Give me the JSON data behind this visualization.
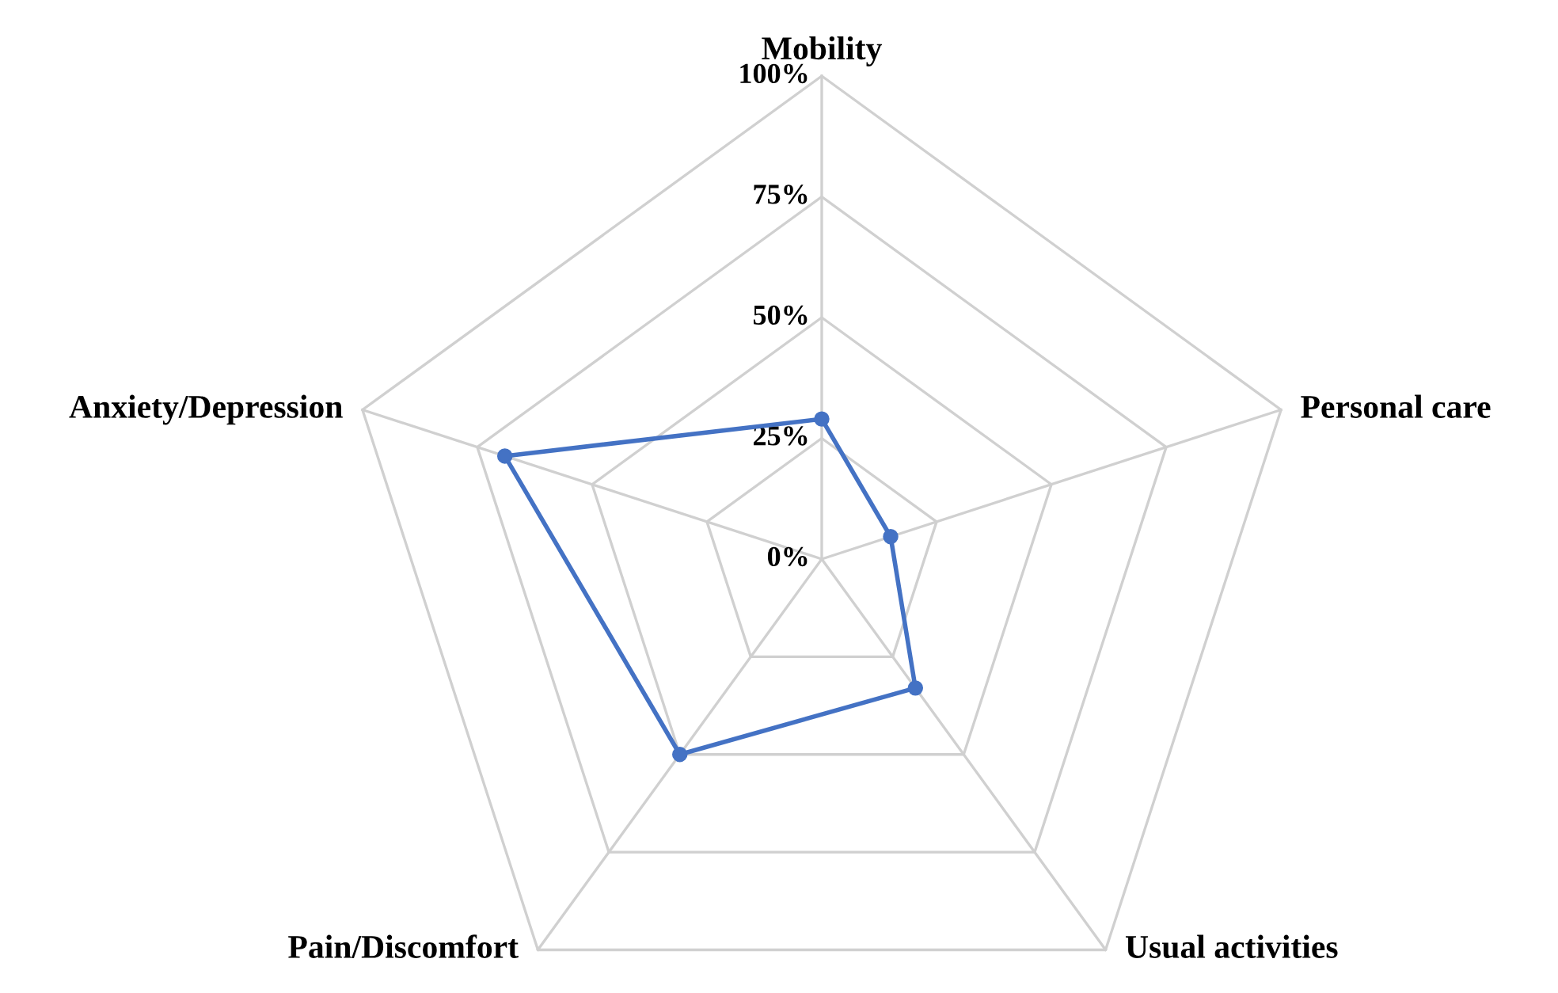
{
  "chart_data": {
    "type": "radar",
    "categories": [
      "Mobility",
      "Personal care",
      "Usual activities",
      "Pain/Discomfort",
      "Anxiety/Depression"
    ],
    "series": [
      {
        "color": "#4472c4",
        "values": [
          29,
          15,
          33,
          50,
          69
        ]
      }
    ],
    "ylim": [
      0,
      100
    ],
    "yticks": [
      {
        "value": 0,
        "label": "0%"
      },
      {
        "value": 25,
        "label": "25%"
      },
      {
        "value": 50,
        "label": "50%"
      },
      {
        "value": 75,
        "label": "75%"
      },
      {
        "value": 100,
        "label": "100%"
      }
    ],
    "grid": true,
    "marker": "circle",
    "line_style": "solid"
  }
}
